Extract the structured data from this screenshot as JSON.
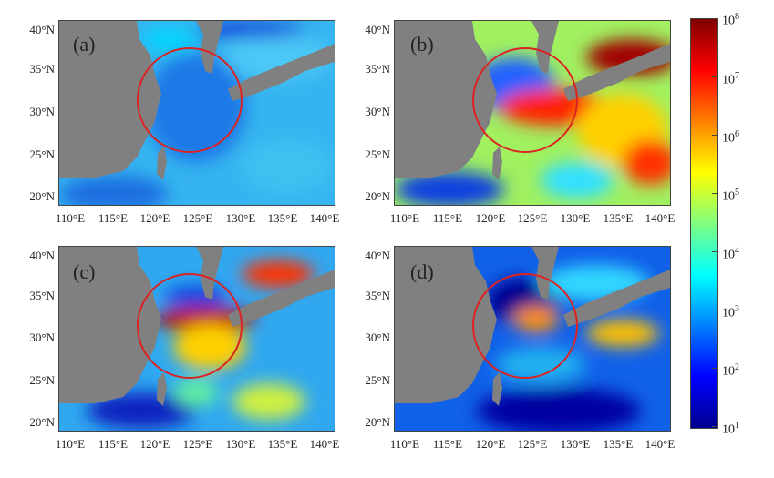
{
  "panels": [
    {
      "label": "(a)"
    },
    {
      "label": "(b)"
    },
    {
      "label": "(c)"
    },
    {
      "label": "(d)"
    }
  ],
  "axes": {
    "lat_labels": [
      "40°N",
      "35°N",
      "30°N",
      "25°N",
      "20°N"
    ],
    "lon_labels": [
      "110°E",
      "115°E",
      "120°E",
      "125°E",
      "130°E",
      "135°E",
      "140°E"
    ]
  },
  "colorbar": {
    "scale": "log",
    "min_exponent": 1,
    "max_exponent": 8,
    "base": "10",
    "exponents": [
      "8",
      "7",
      "6",
      "5",
      "4",
      "3",
      "2",
      "1"
    ],
    "colors": [
      "#7f0000",
      "#ff0000",
      "#ff8000",
      "#ffff00",
      "#80ff80",
      "#00ffff",
      "#0080ff",
      "#0000ff",
      "#00008f"
    ]
  },
  "colors": {
    "land": "#808080",
    "circle": "#dd2222"
  }
}
